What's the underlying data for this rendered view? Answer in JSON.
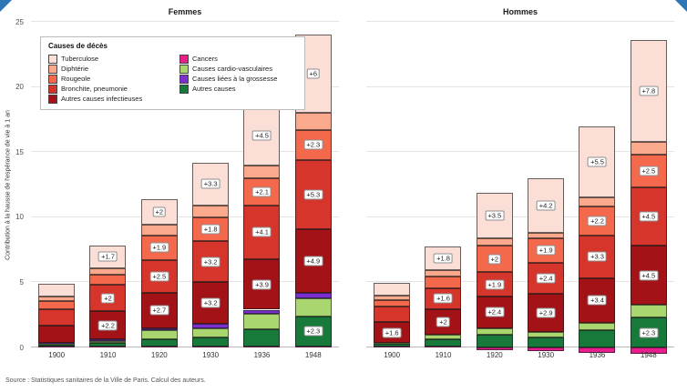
{
  "figure": {
    "source": "Source : Statistiques sanitaires de la Ville de Paris. Calcul des auteurs.",
    "accent_blue": "#2e75b6"
  },
  "legend": {
    "title": "Causes de décès",
    "columns": [
      [
        "Tuberculose",
        "Diphtérie",
        "Rougeole",
        "Bronchite, pneumonie",
        "Autres causes infectieuses"
      ],
      [
        "Cancers",
        "Causes cardio-vasculaires",
        "Causes liées à la grossesse",
        "Autres causes"
      ]
    ]
  },
  "chart_data": {
    "type": "bar",
    "stacked": true,
    "title": "",
    "ylabel": "Contribution à la hausse de l'espérance de vie à 1 an",
    "ylim": [
      0,
      25
    ],
    "yticks": [
      0,
      5,
      10,
      15,
      20,
      25
    ],
    "categories": [
      "1900",
      "1910",
      "1920",
      "1930",
      "1936",
      "1948"
    ],
    "causes": [
      {
        "name": "Cancers",
        "color": "#e81e8c"
      },
      {
        "name": "Autres causes",
        "color": "#17793a"
      },
      {
        "name": "Causes cardio-vasculaires",
        "color": "#a9d66e"
      },
      {
        "name": "Causes liées à la grossesse",
        "color": "#7b2fd1"
      },
      {
        "name": "Autres causes infectieuses",
        "color": "#a31216"
      },
      {
        "name": "Bronchite, pneumonie",
        "color": "#d6352b"
      },
      {
        "name": "Rougeole",
        "color": "#f4694b"
      },
      {
        "name": "Diphtérie",
        "color": "#fba98c"
      },
      {
        "name": "Tuberculose",
        "color": "#fbdfd7"
      }
    ],
    "panels": [
      {
        "title": "Femmes",
        "values": [
          [
            0.05,
            0.15,
            0.1,
            0.05,
            1.3,
            1.3,
            0.6,
            0.35,
            1.0
          ],
          [
            0.05,
            0.3,
            0.15,
            0.1,
            2.2,
            2.0,
            0.8,
            0.5,
            1.7
          ],
          [
            0.1,
            0.5,
            0.7,
            0.2,
            2.7,
            2.5,
            1.9,
            0.8,
            2.0
          ],
          [
            0.1,
            0.7,
            0.7,
            0.3,
            3.2,
            3.2,
            1.8,
            0.9,
            3.3
          ],
          [
            0.1,
            1.3,
            1.2,
            0.3,
            3.9,
            4.1,
            2.1,
            1.0,
            4.5
          ],
          [
            0.1,
            2.3,
            1.4,
            0.4,
            4.9,
            5.3,
            2.3,
            1.3,
            6.0
          ]
        ],
        "labels": [
          [
            null,
            null,
            null,
            null,
            null,
            null,
            null,
            null,
            null
          ],
          [
            null,
            null,
            null,
            null,
            "+2.2",
            "+2",
            null,
            null,
            "+1.7"
          ],
          [
            null,
            null,
            null,
            null,
            "+2.7",
            "+2.5",
            "+1.9",
            null,
            "+2"
          ],
          [
            null,
            null,
            null,
            null,
            "+3.2",
            "+3.2",
            "+1.8",
            null,
            "+3.3"
          ],
          [
            null,
            null,
            null,
            null,
            "+3.9",
            "+4.1",
            "+2.1",
            null,
            "+4.5"
          ],
          [
            null,
            "+2.3",
            null,
            null,
            "+4.9",
            "+5.3",
            "+2.3",
            null,
            "+6"
          ]
        ]
      },
      {
        "title": "Hommes",
        "values": [
          [
            0.05,
            0.2,
            0.1,
            0.0,
            1.6,
            1.2,
            0.5,
            0.3,
            1.0
          ],
          [
            0.05,
            0.6,
            0.3,
            0.0,
            2.0,
            1.6,
            0.9,
            0.5,
            1.8
          ],
          [
            -0.2,
            1.0,
            0.5,
            0.0,
            2.4,
            1.9,
            2.0,
            0.6,
            3.5
          ],
          [
            -0.3,
            0.8,
            0.4,
            0.0,
            2.9,
            2.4,
            1.9,
            0.4,
            4.2
          ],
          [
            -0.4,
            1.3,
            0.6,
            0.0,
            3.4,
            3.3,
            2.2,
            0.7,
            5.5
          ],
          [
            -0.5,
            2.3,
            1.0,
            0.0,
            4.5,
            4.5,
            2.5,
            1.0,
            7.8
          ]
        ],
        "labels": [
          [
            null,
            null,
            null,
            null,
            "+1.6",
            null,
            null,
            null,
            null
          ],
          [
            null,
            null,
            null,
            null,
            "+2",
            "+1.6",
            null,
            null,
            "+1.8"
          ],
          [
            null,
            null,
            null,
            null,
            "+2.4",
            "+1.9",
            "+2",
            null,
            "+3.5"
          ],
          [
            null,
            null,
            null,
            null,
            "+2.9",
            "+2.4",
            "+1.9",
            null,
            "+4.2"
          ],
          [
            null,
            null,
            null,
            null,
            "+3.4",
            "+3.3",
            "+2.2",
            null,
            "+5.5"
          ],
          [
            null,
            "+2.3",
            null,
            null,
            "+4.5",
            "+4.5",
            "+2.5",
            null,
            "+7.8"
          ]
        ]
      }
    ]
  }
}
